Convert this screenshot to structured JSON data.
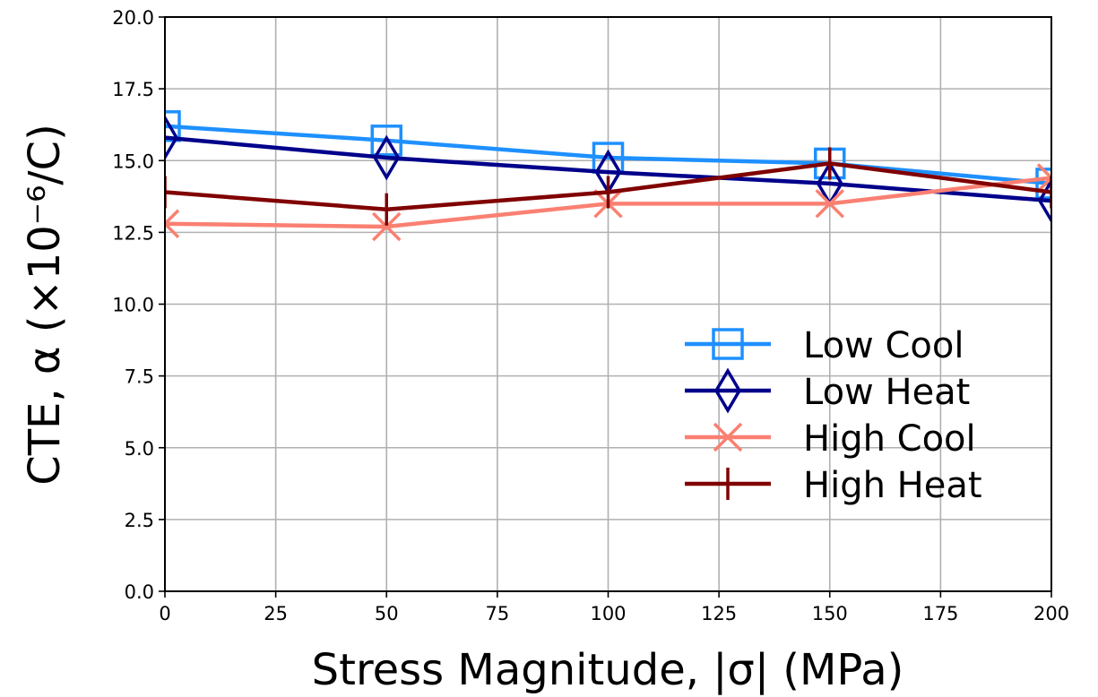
{
  "chart_data": {
    "type": "line",
    "xlabel": "Stress Magnitude, |σ| (MPa)",
    "ylabel": "CTE, α (×10⁻⁶/C)",
    "x": [
      0,
      50,
      100,
      150,
      200
    ],
    "xlim": [
      0,
      200
    ],
    "ylim": [
      0,
      20
    ],
    "x_ticks": [
      "0",
      "25",
      "50",
      "75",
      "100",
      "125",
      "150",
      "175",
      "200"
    ],
    "y_ticks": [
      "0.0",
      "2.5",
      "5.0",
      "7.5",
      "10.0",
      "12.5",
      "15.0",
      "17.5",
      "20.0"
    ],
    "grid": true,
    "legend_position": "lower-right",
    "series": [
      {
        "name": "Low Cool",
        "color": "#1e90ff",
        "marker": "square",
        "values": [
          16.2,
          15.7,
          15.1,
          14.9,
          14.2
        ]
      },
      {
        "name": "Low Heat",
        "color": "#00008b",
        "marker": "diamond",
        "values": [
          15.8,
          15.1,
          14.6,
          14.2,
          13.6
        ]
      },
      {
        "name": "High Cool",
        "color": "#fa8072",
        "marker": "x",
        "values": [
          12.8,
          12.7,
          13.5,
          13.5,
          14.4
        ]
      },
      {
        "name": "High Heat",
        "color": "#800000",
        "marker": "vline",
        "values": [
          13.9,
          13.3,
          13.9,
          14.9,
          13.9
        ]
      }
    ]
  }
}
